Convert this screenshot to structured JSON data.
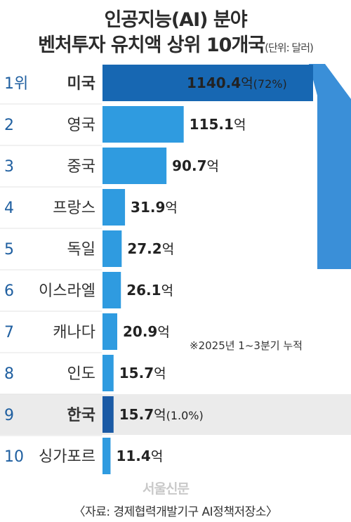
{
  "title": {
    "line1": "인공지능(AI) 분야",
    "line2": "벤처투자 유치액 상위 10개국",
    "unit": "(단위: 달러)"
  },
  "note": "※2025년 1~3분기 누적",
  "source": "〈자료: 경제협력개발기구 AI정책저장소〉",
  "logo": "서울신문",
  "colors": {
    "bar": "#2f9be0",
    "bar_top": "#1767b2",
    "bar_korea": "#1b5aa5",
    "bracket": "#3a8fd8",
    "highlight_row": "#ebebeb",
    "rank_text": "#1f5fa0"
  },
  "chart_data": {
    "type": "bar",
    "orientation": "horizontal",
    "unit": "억",
    "categories": [
      "미국",
      "영국",
      "중국",
      "프랑스",
      "독일",
      "이스라엘",
      "캐나다",
      "인도",
      "한국",
      "싱가포르"
    ],
    "values": [
      1140.4,
      115.1,
      90.7,
      31.9,
      27.2,
      26.1,
      20.9,
      15.7,
      15.7,
      11.4
    ],
    "rows": [
      {
        "rank": "1위",
        "country": "미국",
        "value": "1140.4",
        "unit": "억",
        "pct": "(72%)",
        "highlight": false
      },
      {
        "rank": "2",
        "country": "영국",
        "value": "115.1",
        "unit": "억",
        "pct": "",
        "highlight": false
      },
      {
        "rank": "3",
        "country": "중국",
        "value": "90.7",
        "unit": "억",
        "pct": "",
        "highlight": false
      },
      {
        "rank": "4",
        "country": "프랑스",
        "value": "31.9",
        "unit": "억",
        "pct": "",
        "highlight": false
      },
      {
        "rank": "5",
        "country": "독일",
        "value": "27.2",
        "unit": "억",
        "pct": "",
        "highlight": false
      },
      {
        "rank": "6",
        "country": "이스라엘",
        "value": "26.1",
        "unit": "억",
        "pct": "",
        "highlight": false
      },
      {
        "rank": "7",
        "country": "캐나다",
        "value": "20.9",
        "unit": "억",
        "pct": "",
        "highlight": false
      },
      {
        "rank": "8",
        "country": "인도",
        "value": "15.7",
        "unit": "억",
        "pct": "",
        "highlight": false
      },
      {
        "rank": "9",
        "country": "한국",
        "value": "15.7",
        "unit": "억",
        "pct": "(1.0%)",
        "highlight": true
      },
      {
        "rank": "10",
        "country": "싱가포르",
        "value": "11.4",
        "unit": "억",
        "pct": "",
        "highlight": false
      }
    ]
  }
}
